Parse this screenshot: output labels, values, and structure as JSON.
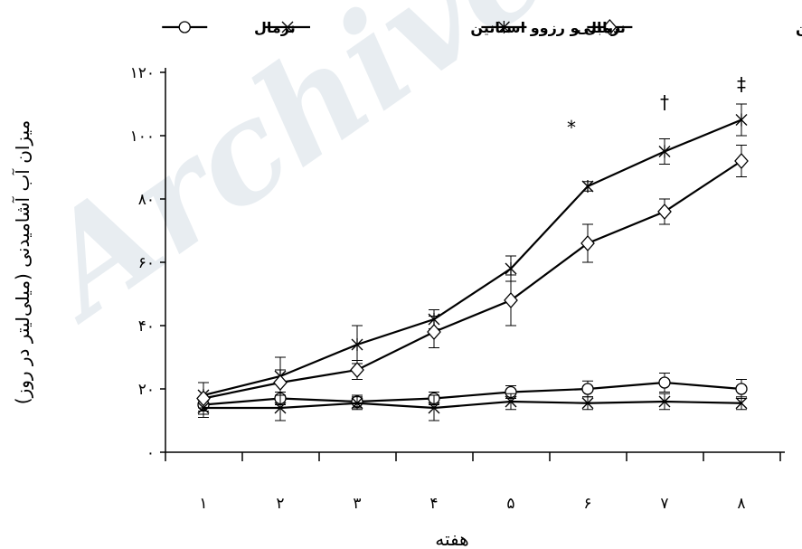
{
  "chart_data": {
    "type": "line",
    "xlabel": "هفته",
    "ylabel": "میزان آب آشامیدنی (میلی‌لیتر در روز)",
    "x": [
      1,
      2,
      3,
      4,
      5,
      6,
      7,
      8
    ],
    "x_tick_labels": [
      "۱",
      "۲",
      "۳",
      "۴",
      "۵",
      "۶",
      "۷",
      "۸"
    ],
    "y_ticks": [
      0,
      20,
      40,
      60,
      80,
      100,
      120
    ],
    "y_tick_labels": [
      "۰",
      "۲۰",
      "۴۰",
      "۶۰",
      "۸۰",
      "۱۰۰",
      "۱۲۰"
    ],
    "ylim": [
      0,
      120
    ],
    "grid": false,
    "legend_position": "top",
    "series": [
      {
        "name": "نرمال",
        "marker": "circle",
        "values": [
          15,
          17,
          16,
          17,
          19,
          20,
          22,
          20
        ],
        "errors": [
          2,
          2,
          2,
          2,
          2,
          2.5,
          3,
          3
        ]
      },
      {
        "name": "نرمال و رزوو اسنانین",
        "marker": "x",
        "values": [
          14,
          14,
          15.5,
          14,
          16,
          15.5,
          16,
          15.5
        ],
        "errors": [
          3,
          4,
          2,
          4,
          2.5,
          2,
          2.5,
          2
        ]
      },
      {
        "name": "دیابتی",
        "marker": "star",
        "values": [
          18,
          24,
          34,
          42,
          58,
          84,
          95,
          105
        ],
        "errors": [
          4,
          6,
          6,
          3,
          4,
          1.5,
          4,
          5
        ]
      },
      {
        "name": "دیابتی و رزوو اسنانین",
        "marker": "diamond",
        "values": [
          17,
          22,
          26,
          38,
          48,
          66,
          76,
          92
        ],
        "errors": [
          5,
          4,
          3,
          5,
          8,
          6,
          4,
          5
        ]
      }
    ],
    "annotations": [
      {
        "x": 6,
        "text": "*"
      },
      {
        "x": 7,
        "text": "†"
      },
      {
        "x": 8,
        "text": "‡"
      }
    ]
  },
  "watermark": "Archive",
  "colors": {
    "line": "#000000",
    "watermark": "#dfe6ec"
  }
}
